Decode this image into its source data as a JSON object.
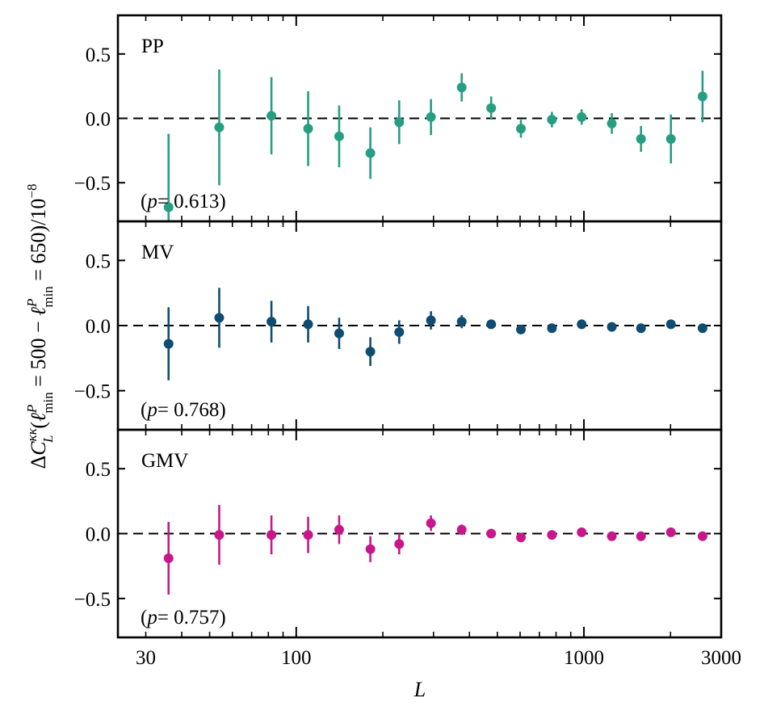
{
  "chart_data": {
    "type": "scatter",
    "subtype": "errorbar",
    "shared_x": true,
    "x_scale": "log",
    "xlabel": "L",
    "ylabel": "ΔC_L^{κκ}(ℓ^P_min = 500 − ℓ^P_min = 650)/10^−8",
    "ylabel_parts": {
      "delta": "Δ",
      "C": "C",
      "sub_L": "L",
      "sup_kk": "κκ",
      "open": "(",
      "ell": "ℓ",
      "sup_P": "P",
      "sub_min": "min",
      "eq1": " = 500",
      "minus": " − ",
      "eq2": " = 650)/10",
      "exp": "−8"
    },
    "xlim": [
      24,
      3000
    ],
    "ylim": [
      -0.8,
      0.8
    ],
    "xticks": [
      {
        "value": 30,
        "label": "30"
      },
      {
        "value": 100,
        "label": "100"
      },
      {
        "value": 1000,
        "label": "1000"
      },
      {
        "value": 3000,
        "label": "3000"
      }
    ],
    "major_xticks": [
      100,
      1000
    ],
    "minor_xticks": [
      30,
      40,
      50,
      60,
      70,
      80,
      90,
      200,
      300,
      400,
      500,
      600,
      700,
      800,
      900,
      2000,
      3000
    ],
    "yticks": [
      {
        "value": 0.5,
        "label": "0.5"
      },
      {
        "value": 0.0,
        "label": "0.0"
      },
      {
        "value": -0.5,
        "label": "−0.5"
      }
    ],
    "reference_line": {
      "y": 0.0,
      "style": "dashed",
      "color": "#000000"
    },
    "grid": false,
    "x": [
      36,
      54,
      82,
      110,
      141,
      181,
      228,
      294,
      376,
      476,
      604,
      774,
      982,
      1250,
      1579,
      2006,
      2584
    ],
    "panels": [
      {
        "name": "PP",
        "label": "PP",
        "p_value_text": "(p = 0.613)",
        "p_prefix": "(",
        "p_symbol": "p",
        "p_value": "= 0.613)",
        "color": "#259e82",
        "y": [
          -0.69,
          -0.07,
          0.02,
          -0.08,
          -0.14,
          -0.27,
          -0.03,
          0.01,
          0.24,
          0.08,
          -0.08,
          -0.01,
          0.01,
          -0.04,
          -0.16,
          -0.16,
          0.17
        ],
        "err": [
          0.57,
          0.45,
          0.3,
          0.29,
          0.24,
          0.2,
          0.17,
          0.14,
          0.11,
          0.09,
          0.07,
          0.06,
          0.06,
          0.08,
          0.1,
          0.19,
          0.2
        ]
      },
      {
        "name": "MV",
        "label": "MV",
        "p_value_text": "(p = 0.768)",
        "p_prefix": "(",
        "p_symbol": "p",
        "p_value": "= 0.768)",
        "color": "#0e4c72",
        "y": [
          -0.14,
          0.06,
          0.03,
          0.01,
          -0.06,
          -0.2,
          -0.05,
          0.04,
          0.03,
          0.01,
          -0.03,
          -0.02,
          0.01,
          -0.01,
          -0.02,
          0.01,
          -0.02
        ],
        "err": [
          0.28,
          0.23,
          0.16,
          0.14,
          0.12,
          0.11,
          0.09,
          0.07,
          0.05,
          0.03,
          0.02,
          0.02,
          0.02,
          0.02,
          0.02,
          0.02,
          0.02
        ]
      },
      {
        "name": "GMV",
        "label": "GMV",
        "p_value_text": "(p = 0.757)",
        "p_prefix": "(",
        "p_symbol": "p",
        "p_value": "= 0.757)",
        "color": "#c8178a",
        "y": [
          -0.19,
          -0.01,
          -0.01,
          -0.01,
          0.03,
          -0.12,
          -0.08,
          0.08,
          0.03,
          0.0,
          -0.03,
          -0.01,
          0.01,
          -0.02,
          -0.02,
          0.01,
          -0.02
        ],
        "err": [
          0.28,
          0.23,
          0.15,
          0.14,
          0.11,
          0.1,
          0.08,
          0.06,
          0.04,
          0.02,
          0.02,
          0.02,
          0.02,
          0.02,
          0.02,
          0.02,
          0.02
        ]
      }
    ]
  }
}
